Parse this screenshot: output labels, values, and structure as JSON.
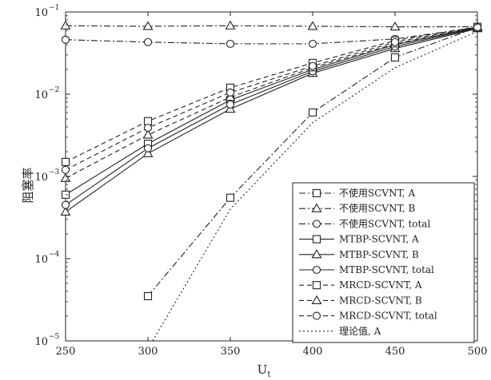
{
  "chart_data": {
    "type": "line",
    "title": "",
    "xlabel": "U",
    "xlabel_sub": "t",
    "ylabel": "阻塞率",
    "x": [
      250,
      300,
      350,
      400,
      450,
      500
    ],
    "xlim": [
      250,
      500
    ],
    "ylim": [
      1e-05,
      0.1
    ],
    "yscale": "log",
    "x_tick_labels": [
      "250",
      "300",
      "350",
      "400",
      "450",
      "500"
    ],
    "y_ticks": [
      {
        "value": 1e-05,
        "base": "10",
        "exp": "−5"
      },
      {
        "value": 0.0001,
        "base": "10",
        "exp": "−4"
      },
      {
        "value": 0.001,
        "base": "10",
        "exp": "−3"
      },
      {
        "value": 0.01,
        "base": "10",
        "exp": "−2"
      },
      {
        "value": 0.1,
        "base": "10",
        "exp": "−1"
      }
    ],
    "grid": false,
    "legend_position": "bottom-right",
    "series": [
      {
        "name": "不使用SCVNT, A",
        "marker": "square",
        "dash": "dashdot",
        "values": [
          null,
          3.5e-05,
          0.00055,
          0.006,
          0.028,
          0.065
        ]
      },
      {
        "name": "不使用SCVNT, B",
        "marker": "triangle",
        "dash": "dashdot",
        "values": [
          0.068,
          0.067,
          0.068,
          0.067,
          0.066,
          0.066
        ]
      },
      {
        "name": "不使用SCVNT, total",
        "marker": "circle",
        "dash": "dashdot",
        "values": [
          0.046,
          0.043,
          0.041,
          0.041,
          0.047,
          0.065
        ]
      },
      {
        "name": "MTBP-SCVNT, A",
        "marker": "square",
        "dash": "solid",
        "values": [
          0.0006,
          0.0025,
          0.0085,
          0.02,
          0.04,
          0.065
        ]
      },
      {
        "name": "MTBP-SCVNT, B",
        "marker": "triangle",
        "dash": "solid",
        "values": [
          0.00037,
          0.0019,
          0.0066,
          0.018,
          0.036,
          0.063
        ]
      },
      {
        "name": "MTBP-SCVNT, total",
        "marker": "circle",
        "dash": "solid",
        "values": [
          0.00045,
          0.0022,
          0.0075,
          0.019,
          0.038,
          0.064
        ]
      },
      {
        "name": "MRCD-SCVNT, A",
        "marker": "square",
        "dash": "dashed",
        "values": [
          0.0015,
          0.0047,
          0.012,
          0.024,
          0.045,
          0.066
        ]
      },
      {
        "name": "MRCD-SCVNT, B",
        "marker": "triangle",
        "dash": "dashed",
        "values": [
          0.00095,
          0.0032,
          0.0092,
          0.021,
          0.041,
          0.065
        ]
      },
      {
        "name": "MRCD-SCVNT, total",
        "marker": "circle",
        "dash": "dashed",
        "values": [
          0.0012,
          0.0039,
          0.0105,
          0.022,
          0.043,
          0.065
        ]
      },
      {
        "name": "理论值, A",
        "marker": "none",
        "dash": "dotted",
        "values": [
          null,
          8e-06,
          0.0004,
          0.0045,
          0.021,
          0.058
        ]
      }
    ]
  }
}
